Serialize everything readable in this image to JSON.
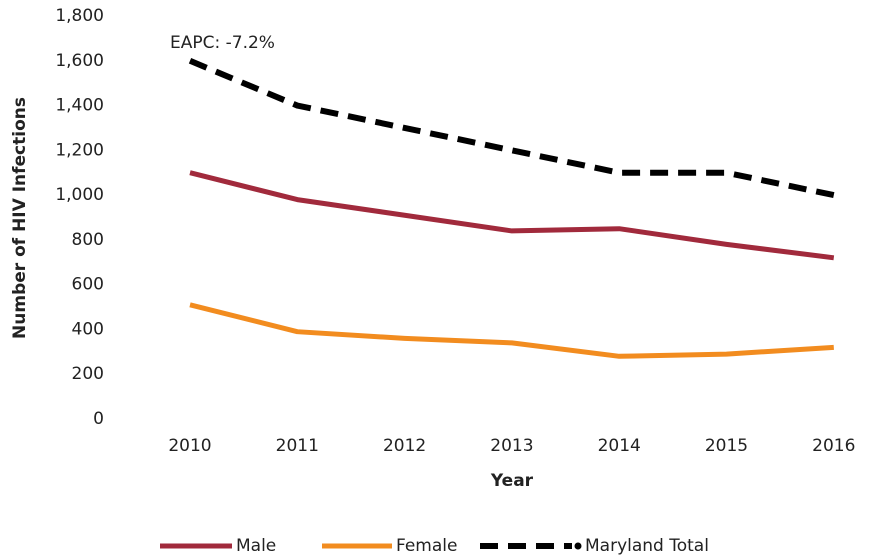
{
  "chart_data": {
    "type": "line",
    "x_label": "Year",
    "y_label": "Number of HIV Infections",
    "annotation": "EAPC: -7.2%",
    "categories": [
      "2010",
      "2011",
      "2012",
      "2013",
      "2014",
      "2015",
      "2016"
    ],
    "series": [
      {
        "name": "Male",
        "color": "#a12a3c",
        "values": [
          1100,
          980,
          910,
          840,
          850,
          780,
          720
        ]
      },
      {
        "name": "Female",
        "color": "#f28c1f",
        "values": [
          510,
          390,
          360,
          340,
          280,
          290,
          320
        ]
      },
      {
        "name": "Maryland Total",
        "color": "#000000",
        "line_style": "dashed",
        "values": [
          1600,
          1400,
          1300,
          1200,
          1100,
          1100,
          1000
        ]
      }
    ],
    "ylim": [
      0,
      1800
    ],
    "yticks": [
      0,
      200,
      400,
      600,
      800,
      {
        "value": 1000,
        "label": "1,000"
      },
      {
        "value": 1200,
        "label": "1,200"
      },
      {
        "value": 1400,
        "label": "1,400"
      },
      {
        "value": 1600,
        "label": "1,600"
      },
      {
        "value": 1800,
        "label": "1,800"
      }
    ],
    "grid": false,
    "legend": "bottom"
  }
}
